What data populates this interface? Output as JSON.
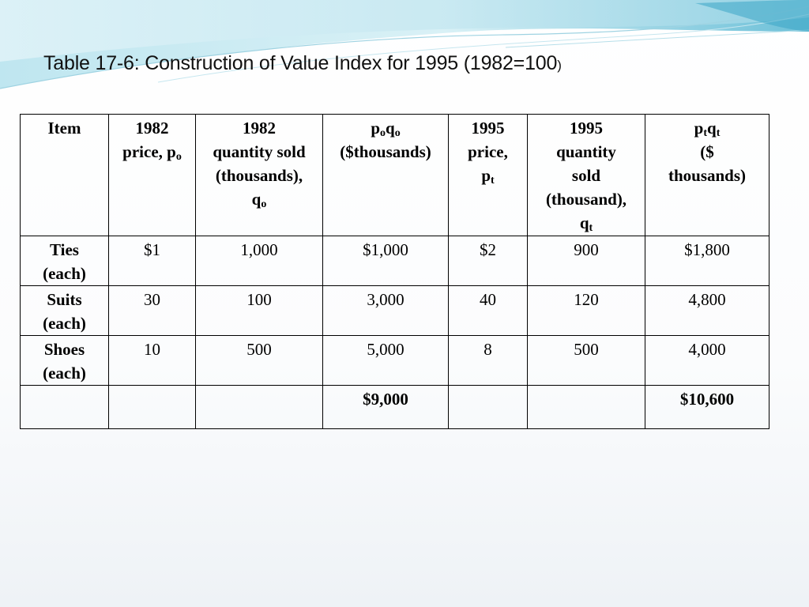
{
  "slide": {
    "title_main": "Table 17-6: Construction of Value Index for 1995 (1982=100",
    "title_tail": ")"
  },
  "table": {
    "headers": {
      "item": "Item",
      "price_1982": {
        "line1": "1982",
        "line2": "price, p",
        "sub": "o"
      },
      "qty_1982": {
        "line1": "1982",
        "line2": "quantity sold",
        "line3": "(thousands),",
        "line4": "q",
        "sub": "o"
      },
      "value_1982": {
        "p": "p",
        "p_sub": "o",
        "q": "q",
        "q_sub": "o",
        "line2": "($thousands)"
      },
      "price_1995": {
        "line1": "1995",
        "line2": "price,",
        "line3": "p",
        "sub": "t"
      },
      "qty_1995": {
        "line1": "1995",
        "line2": "quantity",
        "line3": "sold",
        "line4": "(thousand),",
        "line5": "q",
        "sub": "t"
      },
      "value_1995": {
        "p": "p",
        "p_sub": "t",
        "q": "q",
        "q_sub": "t",
        "line2": "($",
        "line3": "thousands)"
      }
    },
    "rows": [
      {
        "item_line1": "Ties",
        "item_line2": "(each)",
        "price_1982": "$1",
        "qty_1982": "1,000",
        "value_1982": "$1,000",
        "price_1995": "$2",
        "qty_1995": "900",
        "value_1995": "$1,800"
      },
      {
        "item_line1": "Suits",
        "item_line2": "(each)",
        "price_1982": "30",
        "qty_1982": "100",
        "value_1982": "3,000",
        "price_1995": "40",
        "qty_1995": "120",
        "value_1995": "4,800"
      },
      {
        "item_line1": "Shoes",
        "item_line2": "(each)",
        "price_1982": "10",
        "qty_1982": "500",
        "value_1982": "5,000",
        "price_1995": "8",
        "qty_1995": "500",
        "value_1995": "4,000"
      }
    ],
    "totals": {
      "value_1982": "$9,000",
      "value_1995": "$10,600"
    }
  },
  "colors": {
    "wave_light": "#d7eff5",
    "wave_mid": "#7cc8dd",
    "wave_dark": "#3aa6c6"
  }
}
